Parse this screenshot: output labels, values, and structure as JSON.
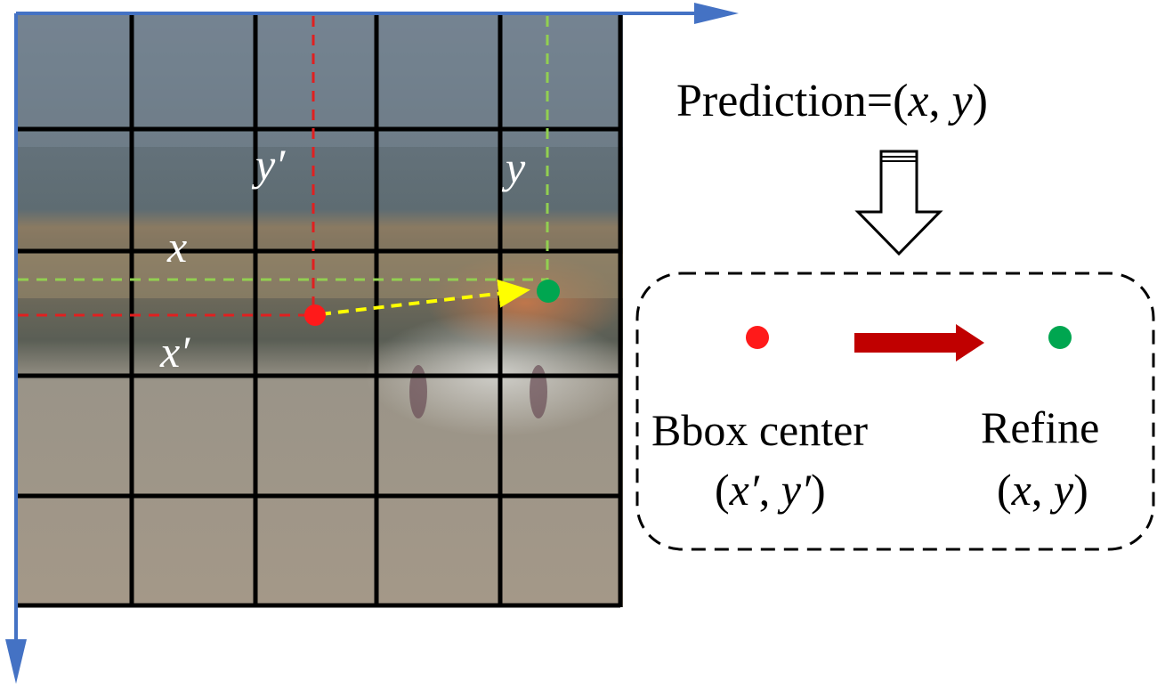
{
  "prediction": {
    "prefix": "Prediction=(",
    "x": "x",
    "sep": ", ",
    "y": "y",
    "suffix": ")"
  },
  "grid_labels": {
    "y_prime": "y′",
    "y": "y",
    "x": "x",
    "x_prime": "x′"
  },
  "legend": {
    "bbox_title": "Bbox center",
    "bbox_coords": {
      "open": "(",
      "x": "x′",
      "sep": ", ",
      "y": "y′",
      "close": ")"
    },
    "refine_title": "Refine",
    "refine_coords": {
      "open": "(",
      "x": "x",
      "sep": ", ",
      "y": "y",
      "close": ")"
    }
  },
  "colors": {
    "axis": "#4472c4",
    "grid": "#000000",
    "bbox_center_point": "#ff1a1a",
    "refine_point": "#00a650",
    "bbox_guides": "#e02020",
    "refine_guides": "#92d050",
    "offset_arrow": "#ffff00",
    "refine_arrow": "#c00000"
  }
}
